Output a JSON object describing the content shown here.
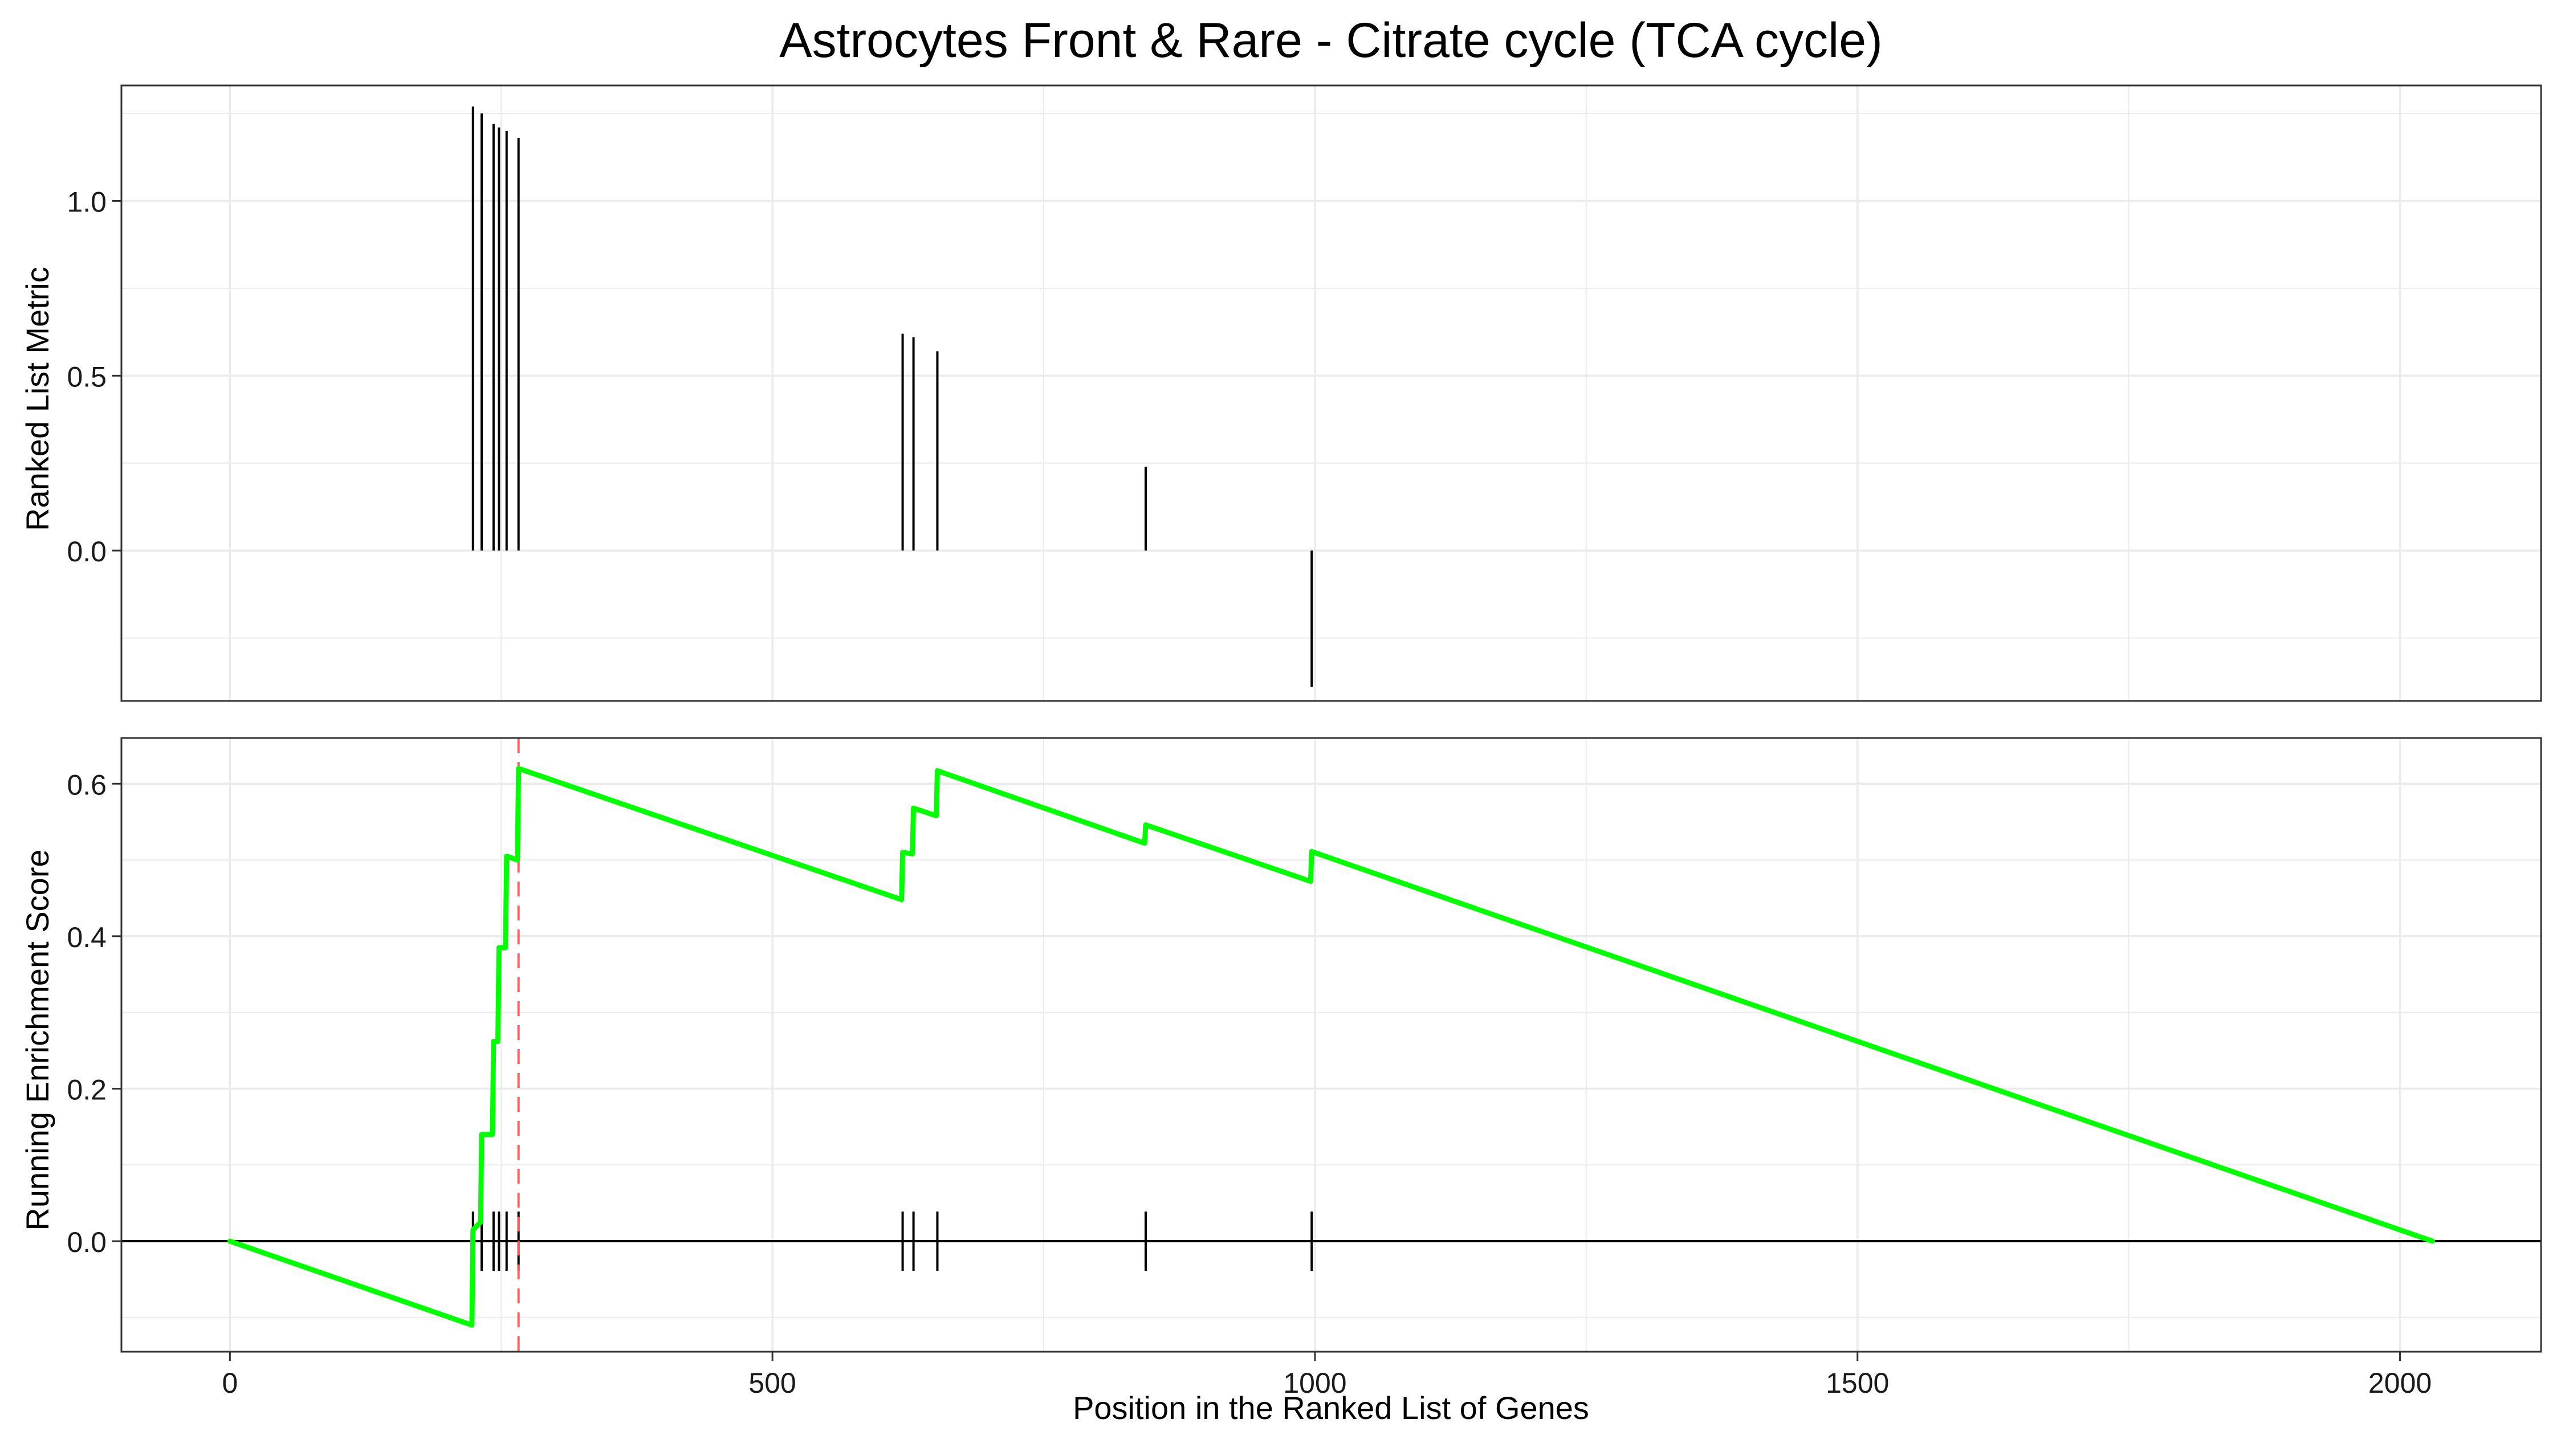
{
  "title": "Astrocytes Front & Rare - Citrate cycle (TCA cycle)",
  "colors": {
    "running_es": "#00ff00",
    "peak_line": "#ff5a5a",
    "panel_bg": "#ffffff",
    "grid": "#ebebeb",
    "frame": "#333333",
    "ticks": "#000000"
  },
  "chart_data": [
    {
      "type": "bar",
      "panel": "ranked-list-metric",
      "ylabel": "Ranked List Metric",
      "xlabel": "",
      "xlim": [
        -100,
        2130
      ],
      "ylim": [
        -0.43,
        1.33
      ],
      "x_ticks": [
        0,
        500,
        1000,
        1500,
        2000
      ],
      "y_ticks": [
        0.0,
        0.5,
        1.0
      ],
      "y_tick_labels": [
        "0.0",
        "0.5",
        "1.0"
      ],
      "grid": true,
      "points": [
        {
          "x": 224,
          "y": 1.27
        },
        {
          "x": 232,
          "y": 1.25
        },
        {
          "x": 243,
          "y": 1.22
        },
        {
          "x": 248,
          "y": 1.21
        },
        {
          "x": 255,
          "y": 1.2
        },
        {
          "x": 266,
          "y": 1.18
        },
        {
          "x": 620,
          "y": 0.62
        },
        {
          "x": 630,
          "y": 0.61
        },
        {
          "x": 652,
          "y": 0.57
        },
        {
          "x": 844,
          "y": 0.24
        },
        {
          "x": 997,
          "y": -0.39
        }
      ]
    },
    {
      "type": "line",
      "panel": "running-enrichment-score",
      "ylabel": "Running Enrichment Score",
      "xlabel": "Position in the Ranked List of Genes",
      "xlim": [
        -100,
        2130
      ],
      "ylim": [
        -0.145,
        0.66
      ],
      "x_ticks": [
        0,
        500,
        1000,
        1500,
        2000
      ],
      "x_tick_labels": [
        "0",
        "500",
        "1000",
        "1500",
        "2000"
      ],
      "y_ticks": [
        0.0,
        0.2,
        0.4,
        0.6
      ],
      "y_tick_labels": [
        "0.0",
        "0.2",
        "0.4",
        "0.6"
      ],
      "grid": true,
      "peak_position": 266,
      "series": [
        {
          "points": [
            [
              0,
              0.0
            ],
            [
              223,
              -0.11
            ],
            [
              224,
              0.015
            ],
            [
              231,
              0.025
            ],
            [
              232,
              0.14
            ],
            [
              242,
              0.14
            ],
            [
              243,
              0.262
            ],
            [
              247,
              0.262
            ],
            [
              248,
              0.385
            ],
            [
              254,
              0.385
            ],
            [
              255,
              0.505
            ],
            [
              265,
              0.5
            ],
            [
              266,
              0.62
            ],
            [
              619,
              0.448
            ],
            [
              620,
              0.51
            ],
            [
              629,
              0.508
            ],
            [
              630,
              0.568
            ],
            [
              651,
              0.558
            ],
            [
              652,
              0.617
            ],
            [
              843,
              0.522
            ],
            [
              844,
              0.546
            ],
            [
              996,
              0.472
            ],
            [
              997,
              0.511
            ],
            [
              2030,
              0.0
            ]
          ]
        }
      ],
      "hit_positions": [
        224,
        232,
        243,
        248,
        255,
        266,
        620,
        630,
        652,
        844,
        997
      ]
    }
  ]
}
